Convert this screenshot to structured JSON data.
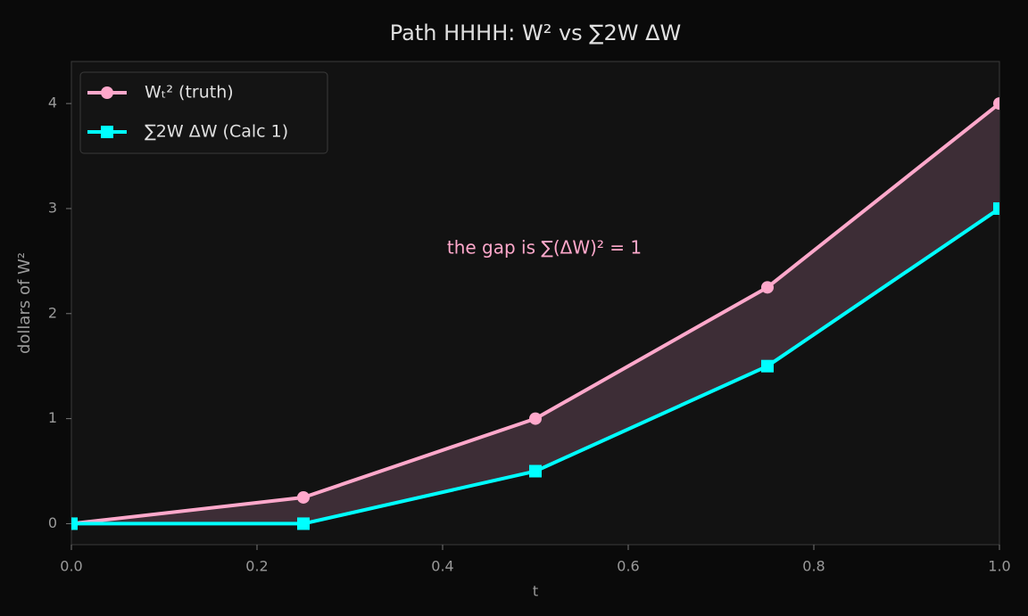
{
  "chart_data": {
    "type": "line",
    "title": "Path HHHH:  W² vs  ∑2W ΔW",
    "x_label": "t",
    "y_label": "dollars of W²",
    "annotation": "the gap is ∑(ΔW)² = 1",
    "x": [
      0,
      0.25,
      0.5,
      0.75,
      1
    ],
    "series": [
      {
        "name": "Wₜ²  (truth)",
        "color": "#ffa8cb",
        "marker": "circle",
        "values": [
          0,
          0.25,
          1,
          2.25,
          4
        ]
      },
      {
        "name": "∑2W ΔW  (Calc 1)",
        "color": "#00ffff",
        "marker": "square",
        "values": [
          0,
          0,
          0.5,
          1.5,
          3
        ]
      }
    ],
    "fill_between_color": "#3d2d36",
    "xlim": [
      0,
      1
    ],
    "xticks": [
      {
        "value": 0,
        "label": "0.0"
      },
      0.2,
      0.4,
      0.6,
      0.8,
      {
        "value": 1,
        "label": "1.0"
      }
    ],
    "ylim": [
      -0.2,
      4.4
    ],
    "yticks": [
      0,
      1,
      2,
      3,
      4
    ],
    "grid": false,
    "legend": "upper left"
  }
}
